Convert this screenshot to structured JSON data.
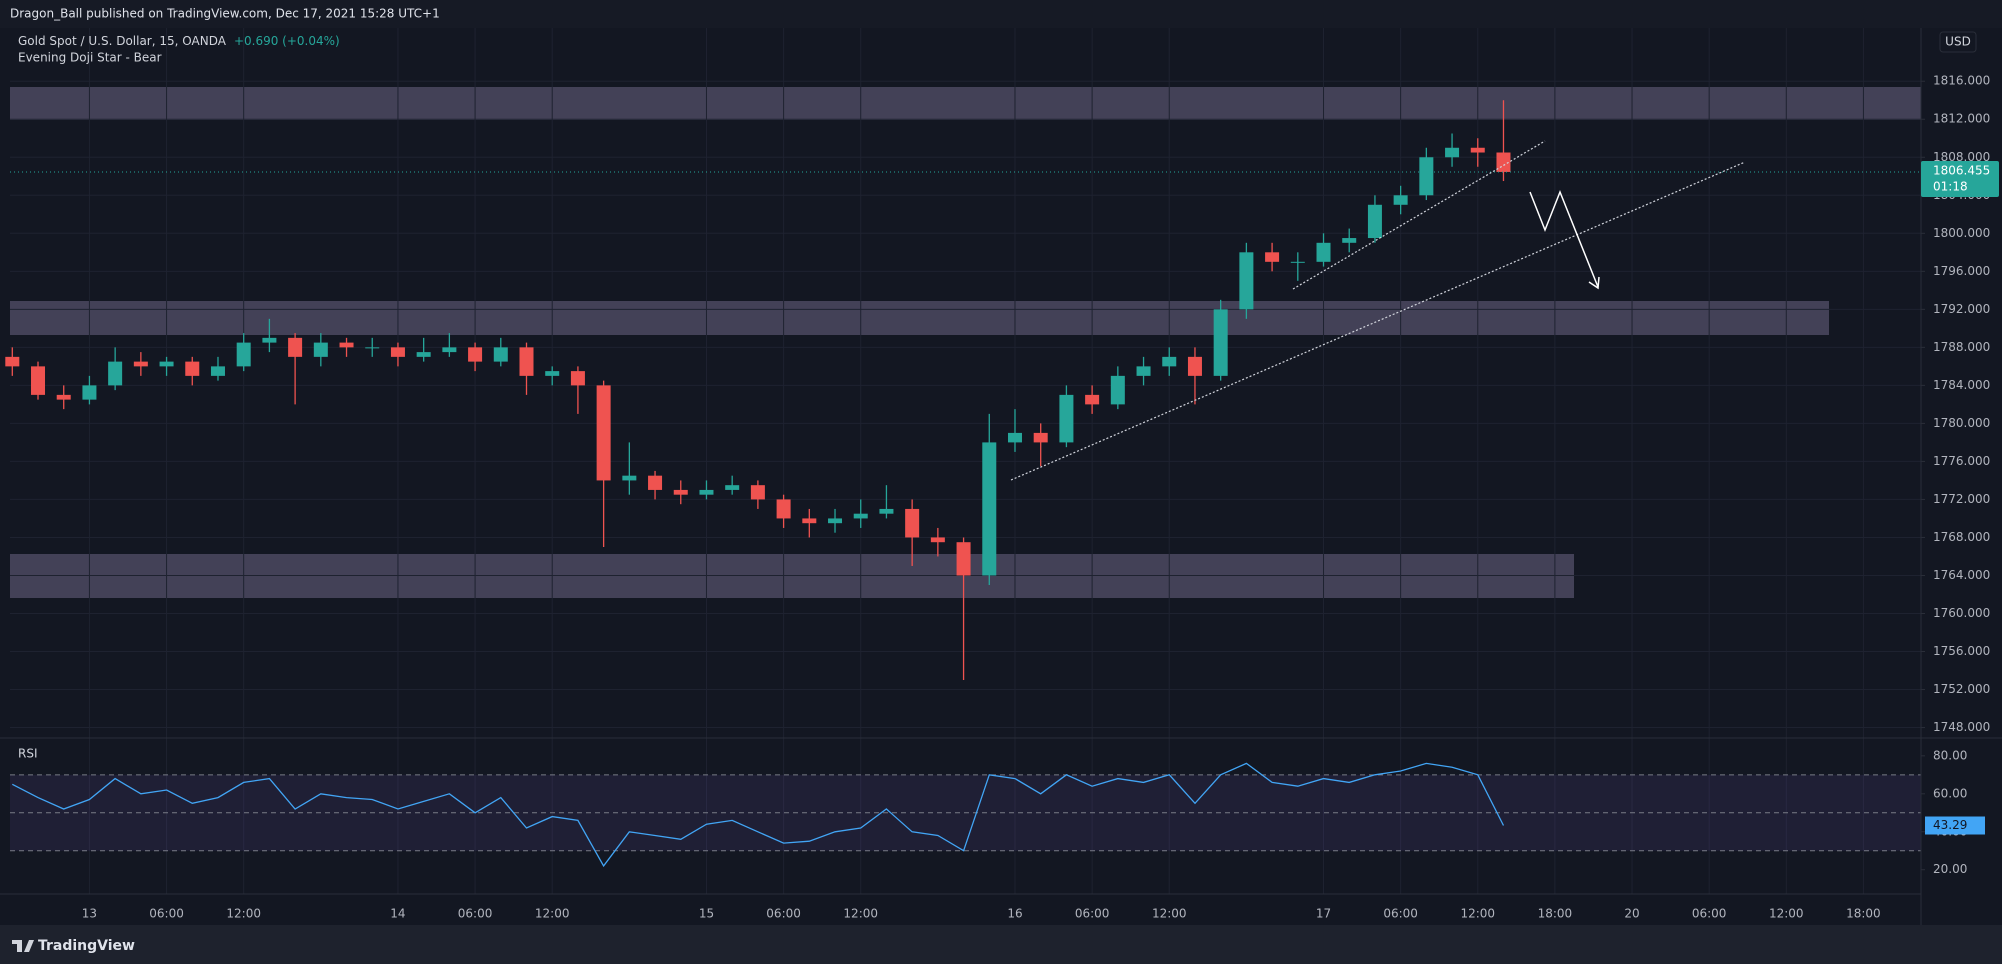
{
  "header": {
    "published": "Dragon_Ball published on TradingView.com, Dec 17, 2021 15:28 UTC+1"
  },
  "footer": {
    "brand": "TradingView"
  },
  "chart_data": [
    {
      "type": "candlestick",
      "title": "Gold Spot / U.S. Dollar, 15, OANDA",
      "change": "+0.690 (+0.04%)",
      "indicator": "Evening Doji Star - Bear",
      "currency": "USD",
      "countdown": "01:18",
      "up_color": "#26a69a",
      "down_color": "#ef5350",
      "categories": [
        null,
        null,
        null,
        "13",
        null,
        null,
        "06:00",
        null,
        null,
        "12:00",
        null,
        null,
        null,
        null,
        null,
        "14",
        null,
        null,
        "06:00",
        null,
        null,
        "12:00",
        null,
        null,
        null,
        null,
        null,
        "15",
        null,
        null,
        "06:00",
        null,
        null,
        "12:00",
        null,
        null,
        null,
        null,
        null,
        "16",
        null,
        null,
        "06:00",
        null,
        null,
        "12:00",
        null,
        null,
        null,
        null,
        null,
        "17",
        null,
        null,
        "06:00",
        null,
        null,
        "12:00",
        null,
        null,
        "18:00",
        null,
        null,
        "20",
        null,
        null,
        "06:00",
        null,
        null,
        "12:00",
        null,
        null,
        "18:00",
        null,
        null
      ],
      "open": [
        1787,
        1786,
        1783,
        1782.5,
        1784,
        1786.5,
        1786,
        1786.5,
        1785,
        1786,
        1788.5,
        1789,
        1787,
        1788.5,
        1788,
        1788,
        1787,
        1787.5,
        1788,
        1786.5,
        1788,
        1785,
        1785.5,
        1784,
        1774,
        1774.5,
        1773,
        1772.5,
        1773,
        1773.5,
        1772,
        1770,
        1769.5,
        1770,
        1770.5,
        1771,
        1768,
        1767.5,
        1764,
        1778,
        1779,
        1778,
        1783,
        1782,
        1785,
        1786,
        1787,
        1785,
        1792,
        1798,
        1797,
        1797,
        1799,
        1799.5,
        1803,
        1804,
        1808,
        1809,
        1808.5,
        null,
        null,
        null,
        null,
        null,
        null,
        null,
        null,
        null,
        null,
        null,
        null,
        null,
        null,
        null,
        null
      ],
      "high": [
        1788,
        1786.5,
        1784,
        1785,
        1788,
        1787.5,
        1787,
        1787,
        1787,
        1789.5,
        1791,
        1789.5,
        1789.5,
        1789,
        1789,
        1788.5,
        1789,
        1789.5,
        1788.5,
        1789,
        1788.5,
        1786,
        1786,
        1784.5,
        1778,
        1775,
        1774,
        1774,
        1774.5,
        1774,
        1772.5,
        1771,
        1771,
        1772,
        1773.5,
        1772,
        1769,
        1768,
        1781,
        1781.5,
        1780,
        1784,
        1784,
        1786,
        1787,
        1788,
        1788,
        1793,
        1799,
        1799,
        1798,
        1800,
        1800.5,
        1804,
        1805,
        1809,
        1810.5,
        1810,
        1814,
        null,
        null,
        null,
        null,
        null,
        null,
        null,
        null,
        null,
        null,
        null,
        null,
        null,
        null,
        null,
        null
      ],
      "low": [
        1785,
        1782.5,
        1781.5,
        1782,
        1783.5,
        1785,
        1785,
        1784,
        1784.5,
        1785.5,
        1787.5,
        1782,
        1786,
        1787,
        1787,
        1786,
        1786.5,
        1787,
        1785.5,
        1786,
        1783,
        1784,
        1781,
        1767,
        1772.5,
        1772,
        1771.5,
        1772,
        1772.5,
        1771,
        1769,
        1768,
        1768.5,
        1769,
        1770,
        1765,
        1766,
        1753,
        1763,
        1777,
        1775.5,
        1777.5,
        1781,
        1781.5,
        1784,
        1785,
        1782,
        1784.5,
        1791,
        1796,
        1795,
        1796.5,
        1798,
        1799,
        1802,
        1803.5,
        1807,
        1807,
        1805.5,
        null,
        null,
        null,
        null,
        null,
        null,
        null,
        null,
        null,
        null,
        null,
        null,
        null,
        null,
        null,
        null
      ],
      "close": [
        1786,
        1783,
        1782.5,
        1784,
        1786.5,
        1786,
        1786.5,
        1785,
        1786,
        1788.5,
        1789,
        1787,
        1788.5,
        1788,
        1788,
        1787,
        1787.5,
        1788,
        1786.5,
        1788,
        1785,
        1785.5,
        1784,
        1774,
        1774.5,
        1773,
        1772.5,
        1773,
        1773.5,
        1772,
        1770,
        1769.5,
        1770,
        1770.5,
        1771,
        1768,
        1767.5,
        1764,
        1778,
        1779,
        1778,
        1783,
        1782,
        1785,
        1786,
        1787,
        1785,
        1792,
        1798,
        1797,
        1797,
        1799,
        1799.5,
        1803,
        1804,
        1808,
        1809,
        1808.5,
        1806.455,
        null,
        null,
        null,
        null,
        null,
        null,
        null,
        null,
        null,
        null,
        null,
        null,
        null,
        null,
        null,
        null
      ],
      "ylim": [
        1746.9,
        1821.6
      ],
      "yticks": [
        {
          "value": 1748,
          "label": "1748.000"
        },
        {
          "value": 1752,
          "label": "1752.000"
        },
        {
          "value": 1756,
          "label": "1756.000"
        },
        {
          "value": 1760,
          "label": "1760.000"
        },
        {
          "value": 1764,
          "label": "1764.000"
        },
        {
          "value": 1768,
          "label": "1768.000"
        },
        {
          "value": 1772,
          "label": "1772.000"
        },
        {
          "value": 1776,
          "label": "1776.000"
        },
        {
          "value": 1780,
          "label": "1780.000"
        },
        {
          "value": 1784,
          "label": "1784.000"
        },
        {
          "value": 1788,
          "label": "1788.000"
        },
        {
          "value": 1792,
          "label": "1792.000"
        },
        {
          "value": 1796,
          "label": "1796.000"
        },
        {
          "value": 1800,
          "label": "1800.000"
        },
        {
          "value": 1804,
          "label": "1804.000"
        },
        {
          "value": 1808,
          "label": "1808.000"
        },
        {
          "value": 1812,
          "label": "1812.000"
        },
        {
          "value": 1816,
          "label": "1816.000"
        }
      ],
      "grid": true
    },
    {
      "type": "line",
      "title": "RSI",
      "color": "#42a5f5",
      "values": [
        65,
        58,
        52,
        57,
        68,
        60,
        62,
        55,
        58,
        66,
        68,
        52,
        60,
        58,
        57,
        52,
        56,
        60,
        50,
        58,
        42,
        48,
        46,
        22,
        40,
        38,
        36,
        44,
        46,
        40,
        34,
        35,
        40,
        42,
        52,
        40,
        38,
        30,
        70,
        68,
        60,
        70,
        64,
        68,
        66,
        70,
        55,
        70,
        76,
        66,
        64,
        68,
        66,
        70,
        72,
        76,
        74,
        70,
        43.29,
        null,
        null,
        null,
        null,
        null,
        null,
        null,
        null,
        null,
        null,
        null,
        null,
        null,
        null,
        null,
        null
      ],
      "levels": [
        70,
        50,
        30
      ],
      "ylim": [
        7.2,
        89.4
      ],
      "yticks": [
        {
          "value": 20,
          "label": "20.00"
        },
        {
          "value": 40,
          "label": "40.00"
        },
        {
          "value": 60,
          "label": "60.00"
        },
        {
          "value": 80,
          "label": "80.00"
        }
      ]
    }
  ]
}
